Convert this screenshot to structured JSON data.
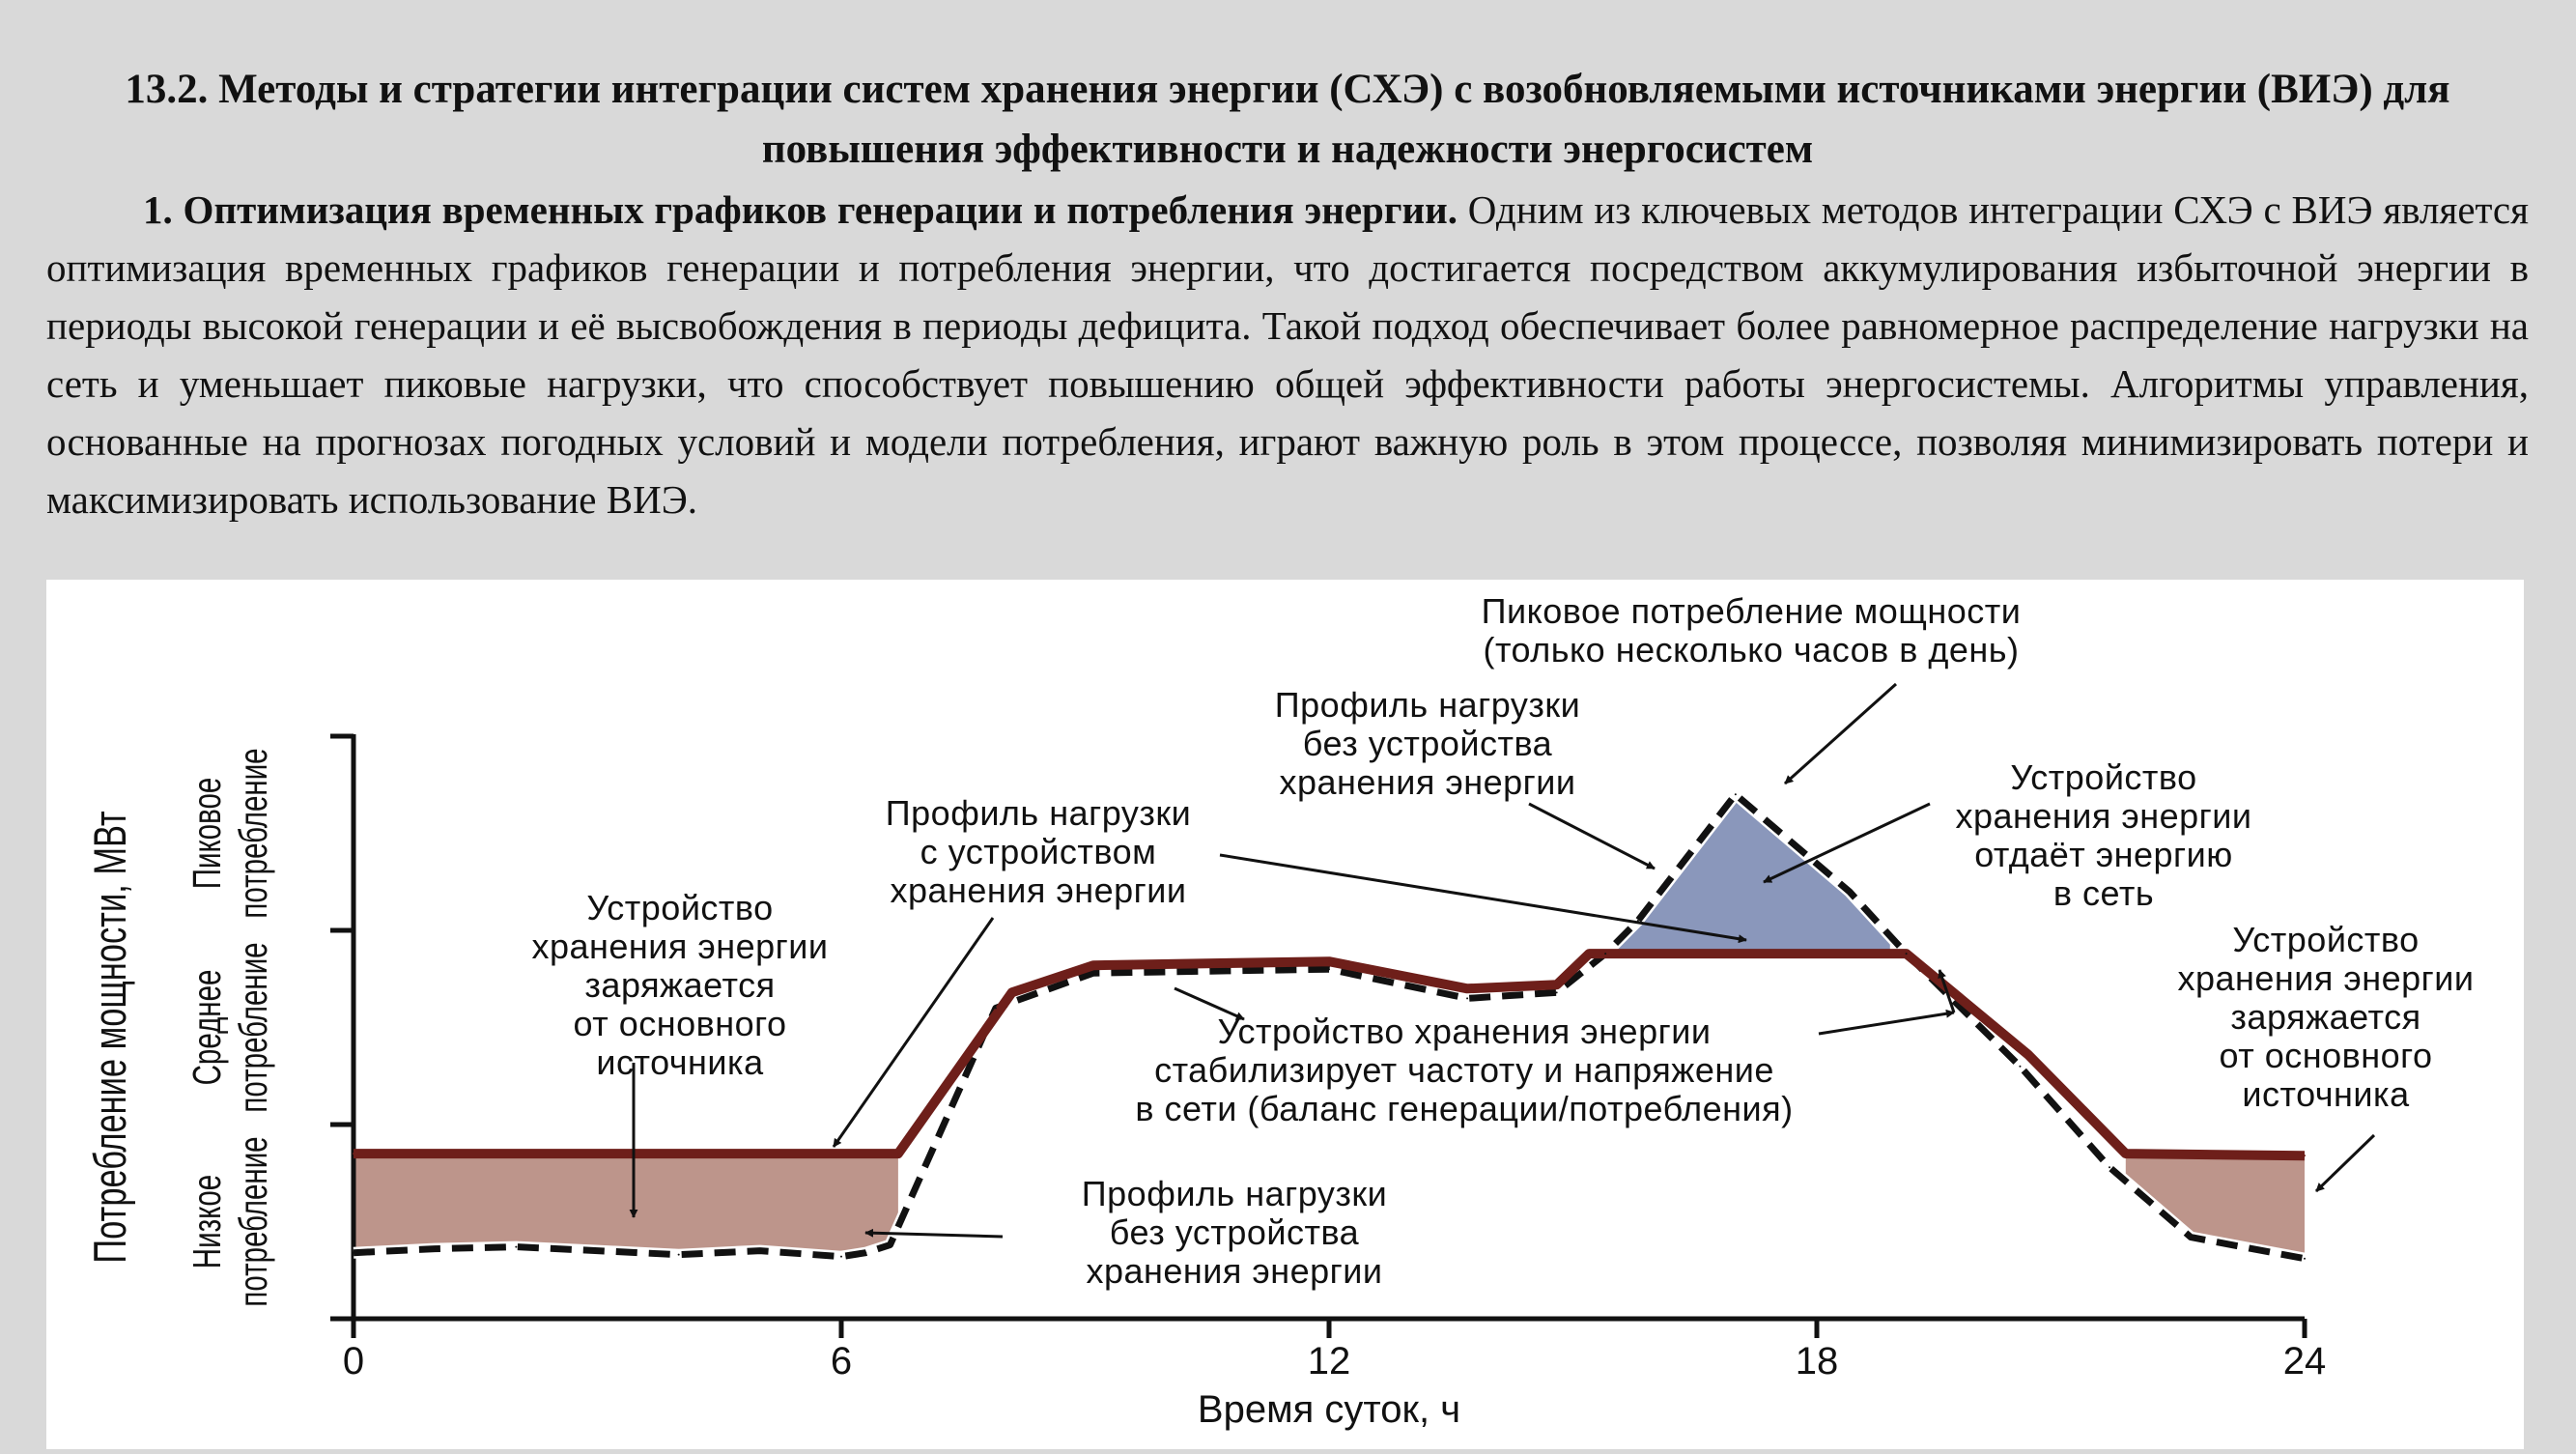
{
  "heading": "13.2. Методы и стратегии интеграции систем хранения энергии (СХЭ) с возобновляемыми источниками энергии (ВИЭ) для повышения эффективности и надежности энергосистем",
  "paragraph": {
    "lead": "1. Оптимизация временных графиков генерации и потребления энергии.",
    "body": " Одним из ключевых методов интеграции СХЭ с ВИЭ является оптимизация временных графиков генерации и потребления энергии, что достигается посредством аккумулирования избыточной энергии в периоды высокой генерации и её высвобождения в периоды дефицита. Такой подход обеспечивает более равномерное распределение нагрузки на сеть и уменьшает пиковые нагрузки, что способствует повышению общей эффективности работы энергосистемы. Алгоритмы управления, основанные на прогнозах погодных условий и модели потребления, играют важную роль в этом процессе, позволяя минимизировать потери и максимизировать использование ВИЭ."
  },
  "chart_data": {
    "type": "line",
    "xlabel": "Время суток, ч",
    "ylabel": "Потребление мощности, МВт",
    "xlim": [
      0,
      24
    ],
    "ylim": [
      0,
      3
    ],
    "x_ticks": [
      "0",
      "6",
      "12",
      "18",
      "24"
    ],
    "y_ticks": [
      0,
      1,
      2,
      3
    ],
    "y_category_labels": [
      {
        "lines": [
          "Низкое",
          "потребление"
        ],
        "from": 0,
        "to": 1
      },
      {
        "lines": [
          "Среднее",
          "потребление"
        ],
        "from": 1,
        "to": 2
      },
      {
        "lines": [
          "Пиковое",
          "потребление"
        ],
        "from": 2,
        "to": 3
      }
    ],
    "series": [
      {
        "key": "with_storage",
        "style": "solid",
        "color": "#6e1f1a",
        "x": [
          0,
          6.7,
          8.1,
          9.1,
          12,
          13.7,
          14.8,
          15.2,
          19.1,
          20.6,
          21.8,
          24
        ],
        "y": [
          0.85,
          0.85,
          1.68,
          1.82,
          1.84,
          1.7,
          1.72,
          1.88,
          1.88,
          1.36,
          0.85,
          0.84
        ]
      },
      {
        "key": "without_storage",
        "style": "dashed",
        "color": "#111111",
        "x": [
          0,
          1,
          2,
          3,
          4,
          5,
          6,
          6.3,
          6.6,
          7.9,
          9.1,
          12,
          13.7,
          14.8,
          15.4,
          15.8,
          17,
          18.4,
          19.1,
          20.5,
          21.6,
          22.6,
          24
        ],
        "y": [
          0.34,
          0.36,
          0.37,
          0.35,
          0.33,
          0.35,
          0.32,
          0.34,
          0.38,
          1.6,
          1.78,
          1.8,
          1.65,
          1.68,
          1.88,
          2.05,
          2.7,
          2.2,
          1.88,
          1.3,
          0.78,
          0.42,
          0.31
        ]
      }
    ],
    "fills": [
      {
        "meaning": "charge",
        "color": "#bd958b",
        "x_range": [
          0,
          6.7
        ]
      },
      {
        "meaning": "charge",
        "color": "#bd958b",
        "x_range": [
          21.8,
          24
        ]
      },
      {
        "meaning": "discharge",
        "color": "#8a97bb",
        "x_range": [
          15.5,
          18.9
        ]
      }
    ],
    "annotations": [
      {
        "key": "peak_demand",
        "text": [
          "Пиковое потребление мощности",
          "(только несколько часов в день)"
        ]
      },
      {
        "key": "no_storage_top",
        "text": [
          "Профиль нагрузки",
          "без устройства",
          "хранения энергии"
        ]
      },
      {
        "key": "discharge",
        "text": [
          "Устройство",
          "хранения энергии",
          "отдаёт энергию",
          "в сеть"
        ]
      },
      {
        "key": "with_storage",
        "text": [
          "Профиль нагрузки",
          "с устройством",
          "хранения энергии"
        ]
      },
      {
        "key": "charge_left",
        "text": [
          "Устройство",
          "хранения энергии",
          "заряжается",
          "от основного",
          "источника"
        ]
      },
      {
        "key": "charge_right",
        "text": [
          "Устройство",
          "хранения энергии",
          "заряжается",
          "от основного",
          "источника"
        ]
      },
      {
        "key": "stabilize",
        "text": [
          "Устройство хранения энергии",
          "стабилизирует частоту и напряжение",
          "в сети (баланс генерации/потребления)"
        ]
      },
      {
        "key": "no_storage_bottom",
        "text": [
          "Профиль нагрузки",
          "без устройства",
          "хранения энергии"
        ]
      }
    ]
  }
}
